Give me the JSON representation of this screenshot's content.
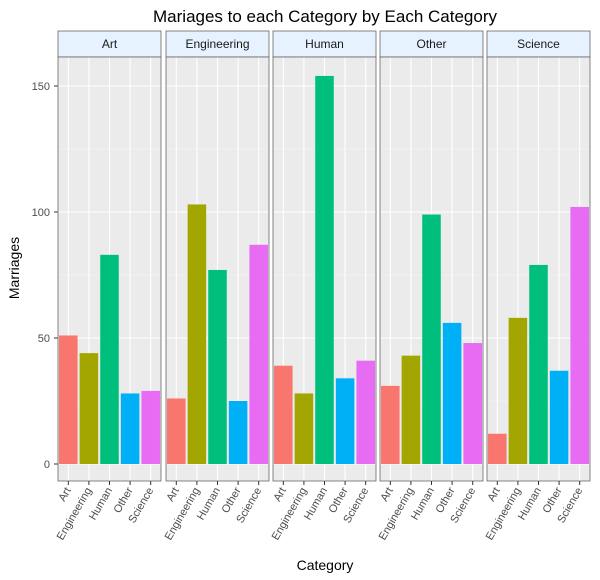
{
  "chart_data": {
    "type": "bar",
    "title": "Mariages to each Category by Each Category",
    "xlabel": "Category",
    "ylabel": "Marriages",
    "categories": [
      "Art",
      "Engineering",
      "Human",
      "Other",
      "Science"
    ],
    "colors": {
      "Art": "#F8766D",
      "Engineering": "#A3A500",
      "Human": "#00BF7D",
      "Other": "#00B0F6",
      "Science": "#E76BF3"
    },
    "ylim": [
      0,
      160
    ],
    "yticks": [
      0,
      50,
      100,
      150
    ],
    "grid": true,
    "legend": "none",
    "facets": [
      {
        "name": "Art",
        "values": [
          51,
          44,
          83,
          28,
          29
        ]
      },
      {
        "name": "Engineering",
        "values": [
          26,
          103,
          77,
          25,
          87
        ]
      },
      {
        "name": "Human",
        "values": [
          39,
          28,
          154,
          34,
          41
        ]
      },
      {
        "name": "Other",
        "values": [
          31,
          43,
          99,
          56,
          48
        ]
      },
      {
        "name": "Science",
        "values": [
          12,
          58,
          79,
          37,
          102
        ]
      }
    ]
  }
}
